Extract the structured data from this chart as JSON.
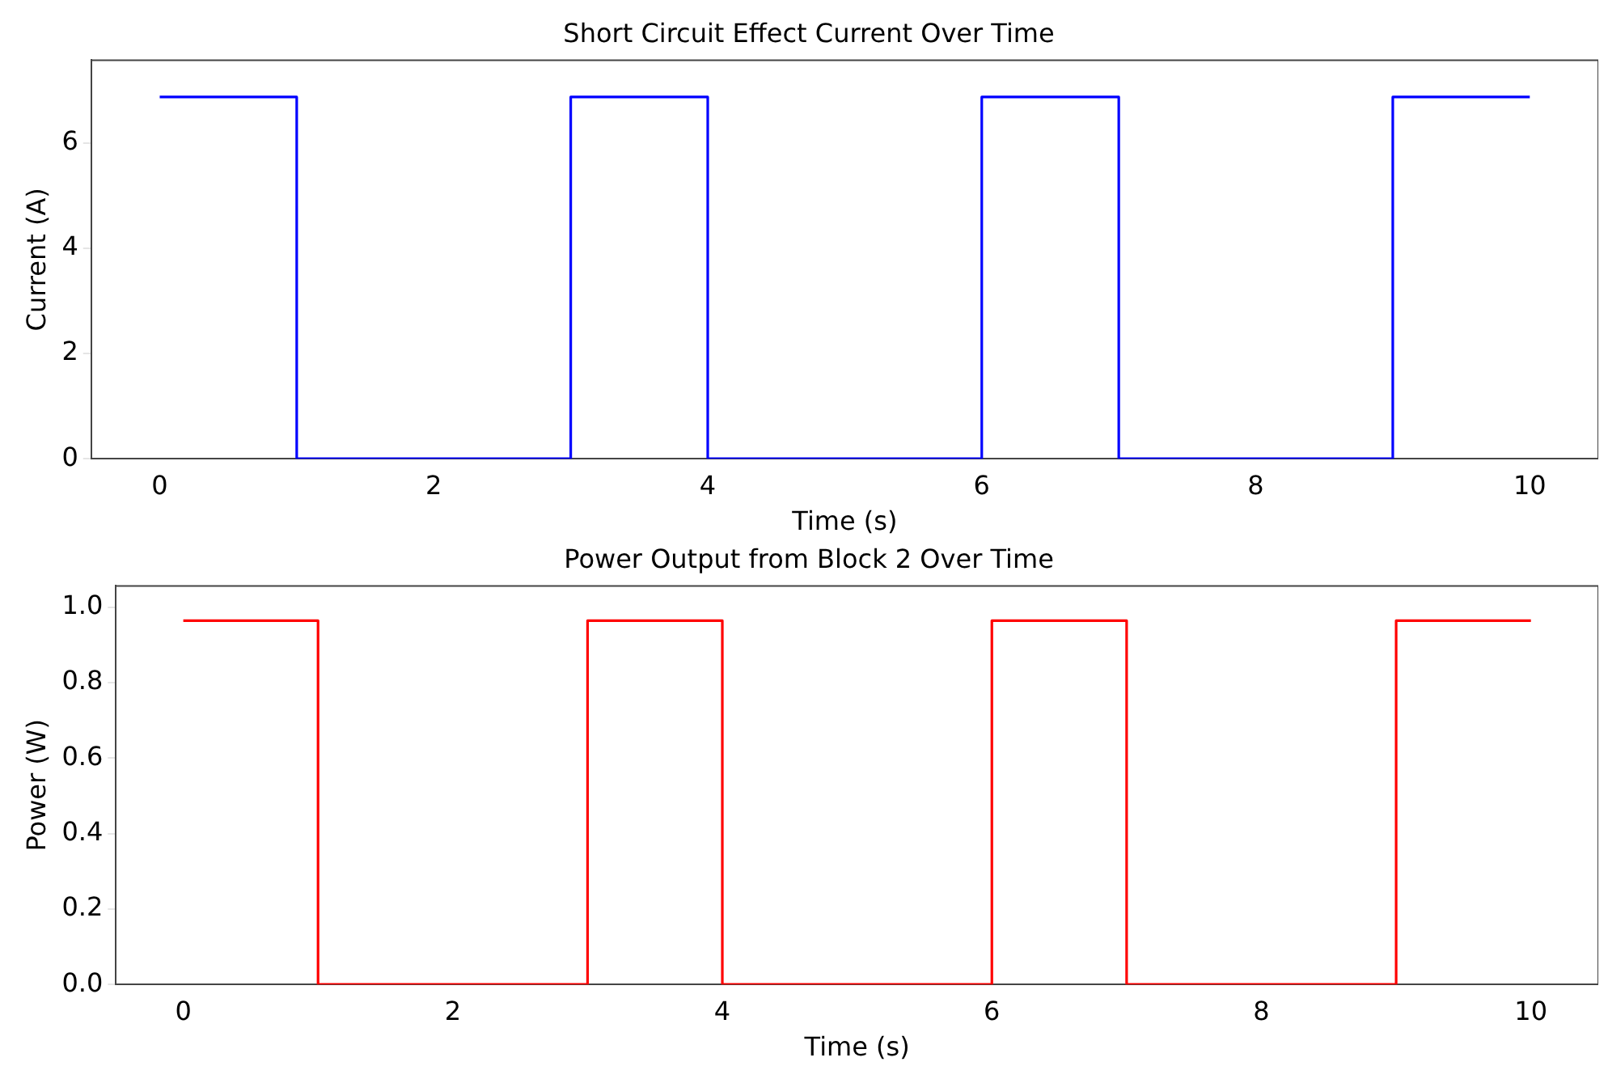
{
  "chart_data": [
    {
      "type": "step",
      "title": "Short Circuit Effect Current Over Time",
      "xlabel": "Time (s)",
      "ylabel": "Current (A)",
      "x": [
        0,
        1,
        3,
        4,
        6,
        7,
        9,
        10
      ],
      "series": [
        {
          "color": "#0000ff",
          "values": [
            6.87,
            0,
            6.87,
            0,
            6.87,
            0,
            6.87,
            6.87
          ]
        }
      ],
      "xlim": [
        -0.5,
        10.5
      ],
      "xticks": [
        0,
        2,
        4,
        6,
        8,
        10
      ],
      "ylim": [
        0,
        7.57
      ],
      "yticks": [
        0,
        2,
        4,
        6
      ],
      "grid": false,
      "legend": false
    },
    {
      "type": "step",
      "title": "Power Output from Block 2 Over Time",
      "xlabel": "Time (s)",
      "ylabel": "Power (W)",
      "x": [
        0,
        1,
        3,
        4,
        6,
        7,
        9,
        10
      ],
      "series": [
        {
          "color": "#ff0000",
          "values": [
            0.964,
            0,
            0.964,
            0,
            0.964,
            0,
            0.964,
            0.964
          ]
        }
      ],
      "xlim": [
        -0.5,
        10.5
      ],
      "xticks": [
        0,
        2,
        4,
        6,
        8,
        10
      ],
      "ylim": [
        0,
        1.056
      ],
      "yticks": [
        {
          "value": 0,
          "label": "0.0"
        },
        0.2,
        0.4,
        0.6,
        0.8,
        {
          "value": 1,
          "label": "1.0"
        }
      ],
      "grid": false,
      "legend": false
    }
  ]
}
